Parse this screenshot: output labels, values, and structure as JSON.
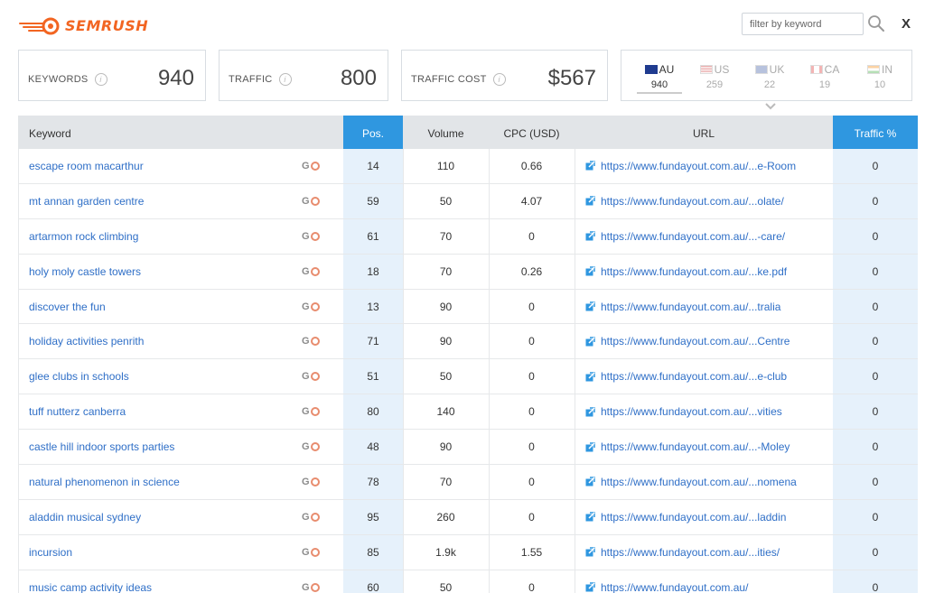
{
  "header": {
    "brand": "SEMRUSH",
    "filter_placeholder": "filter by keyword",
    "close_label": "X"
  },
  "stats": [
    {
      "label": "KEYWORDS",
      "value": "940"
    },
    {
      "label": "TRAFFIC",
      "value": "800"
    },
    {
      "label": "TRAFFIC COST",
      "value": "$567"
    }
  ],
  "countries": [
    {
      "code": "AU",
      "count": "940",
      "active": true
    },
    {
      "code": "US",
      "count": "259",
      "active": false
    },
    {
      "code": "UK",
      "count": "22",
      "active": false
    },
    {
      "code": "CA",
      "count": "19",
      "active": false
    },
    {
      "code": "IN",
      "count": "10",
      "active": false
    }
  ],
  "table": {
    "columns": {
      "keyword": "Keyword",
      "pos": "Pos.",
      "volume": "Volume",
      "cpc": "CPC (USD)",
      "url": "URL",
      "traffic": "Traffic %"
    },
    "rows": [
      {
        "keyword": "escape room macarthur",
        "pos": "14",
        "volume": "110",
        "cpc": "0.66",
        "url": "https://www.fundayout.com.au/...e-Room",
        "traffic": "0"
      },
      {
        "keyword": "mt annan garden centre",
        "pos": "59",
        "volume": "50",
        "cpc": "4.07",
        "url": "https://www.fundayout.com.au/...olate/",
        "traffic": "0"
      },
      {
        "keyword": "artarmon rock climbing",
        "pos": "61",
        "volume": "70",
        "cpc": "0",
        "url": "https://www.fundayout.com.au/...-care/",
        "traffic": "0"
      },
      {
        "keyword": "holy moly castle towers",
        "pos": "18",
        "volume": "70",
        "cpc": "0.26",
        "url": "https://www.fundayout.com.au/...ke.pdf",
        "traffic": "0"
      },
      {
        "keyword": "discover the fun",
        "pos": "13",
        "volume": "90",
        "cpc": "0",
        "url": "https://www.fundayout.com.au/...tralia",
        "traffic": "0"
      },
      {
        "keyword": "holiday activities penrith",
        "pos": "71",
        "volume": "90",
        "cpc": "0",
        "url": "https://www.fundayout.com.au/...Centre",
        "traffic": "0"
      },
      {
        "keyword": "glee clubs in schools",
        "pos": "51",
        "volume": "50",
        "cpc": "0",
        "url": "https://www.fundayout.com.au/...e-club",
        "traffic": "0"
      },
      {
        "keyword": "tuff nutterz canberra",
        "pos": "80",
        "volume": "140",
        "cpc": "0",
        "url": "https://www.fundayout.com.au/...vities",
        "traffic": "0"
      },
      {
        "keyword": "castle hill indoor sports parties",
        "pos": "48",
        "volume": "90",
        "cpc": "0",
        "url": "https://www.fundayout.com.au/...-Moley",
        "traffic": "0"
      },
      {
        "keyword": "natural phenomenon in science",
        "pos": "78",
        "volume": "70",
        "cpc": "0",
        "url": "https://www.fundayout.com.au/...nomena",
        "traffic": "0"
      },
      {
        "keyword": "aladdin musical sydney",
        "pos": "95",
        "volume": "260",
        "cpc": "0",
        "url": "https://www.fundayout.com.au/...laddin",
        "traffic": "0"
      },
      {
        "keyword": "incursion",
        "pos": "85",
        "volume": "1.9k",
        "cpc": "1.55",
        "url": "https://www.fundayout.com.au/...ities/",
        "traffic": "0"
      },
      {
        "keyword": "music camp activity ideas",
        "pos": "60",
        "volume": "50",
        "cpc": "0",
        "url": "https://www.fundayout.com.au/",
        "traffic": "0"
      }
    ]
  },
  "icons": {
    "logo": "fireball-logo-icon",
    "search": "magnifier-icon",
    "info": "info-icon",
    "external_link": "external-link-icon",
    "google": "google-icon",
    "serp": "serp-circle-icon"
  },
  "colors": {
    "brand": "#f26522",
    "accent": "#2f97e0",
    "link": "#2f6fc7",
    "highlight_column": "#e6f1fb"
  }
}
